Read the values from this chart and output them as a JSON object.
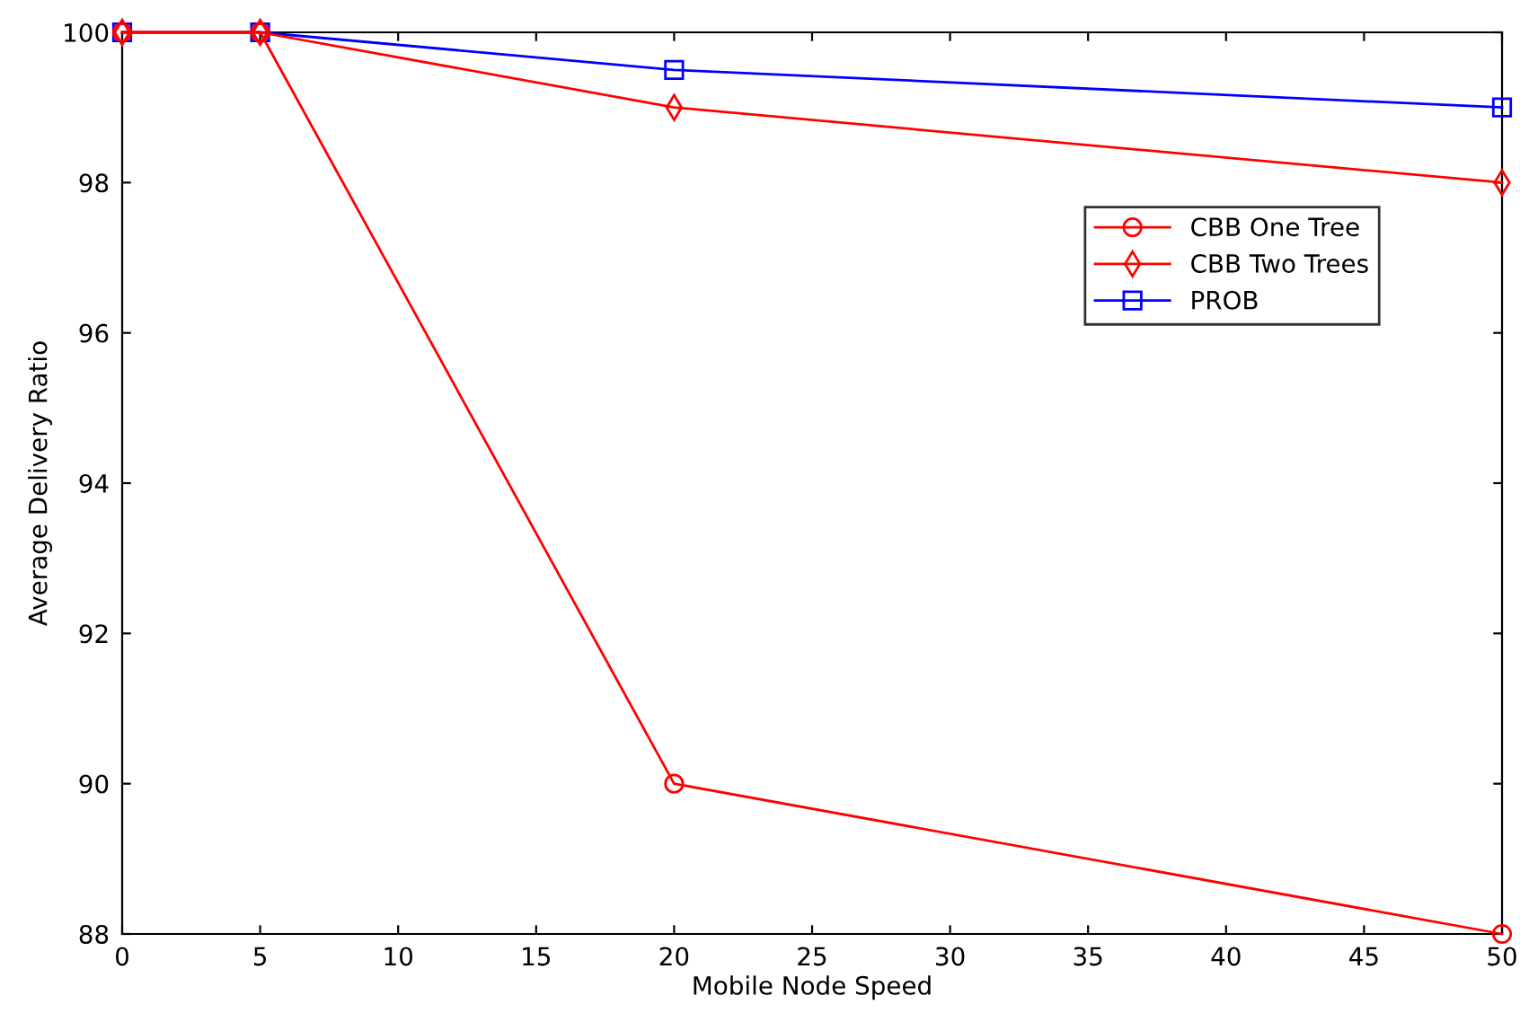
{
  "chart_data": {
    "type": "line",
    "xlabel": "Mobile Node Speed",
    "ylabel": "Average Delivery Ratio",
    "x": [
      0,
      5,
      20,
      50
    ],
    "series": [
      {
        "name": "CBB One Tree",
        "color": "#ff0000",
        "marker": "circle",
        "values": [
          100,
          100,
          90,
          88
        ]
      },
      {
        "name": "CBB Two Trees",
        "color": "#ff0000",
        "marker": "diamond",
        "values": [
          100,
          100,
          99,
          98
        ]
      },
      {
        "name": "PROB",
        "color": "#0000ff",
        "marker": "square",
        "values": [
          100,
          100,
          99.5,
          99
        ]
      }
    ],
    "xlim": [
      0,
      50
    ],
    "xticks": [
      0,
      5,
      10,
      15,
      20,
      25,
      30,
      35,
      40,
      45,
      50
    ],
    "ylim": [
      88,
      100
    ],
    "yticks": [
      88,
      90,
      92,
      94,
      96,
      98,
      100
    ],
    "grid": false,
    "legend": "upper right",
    "line_style": "solid"
  }
}
